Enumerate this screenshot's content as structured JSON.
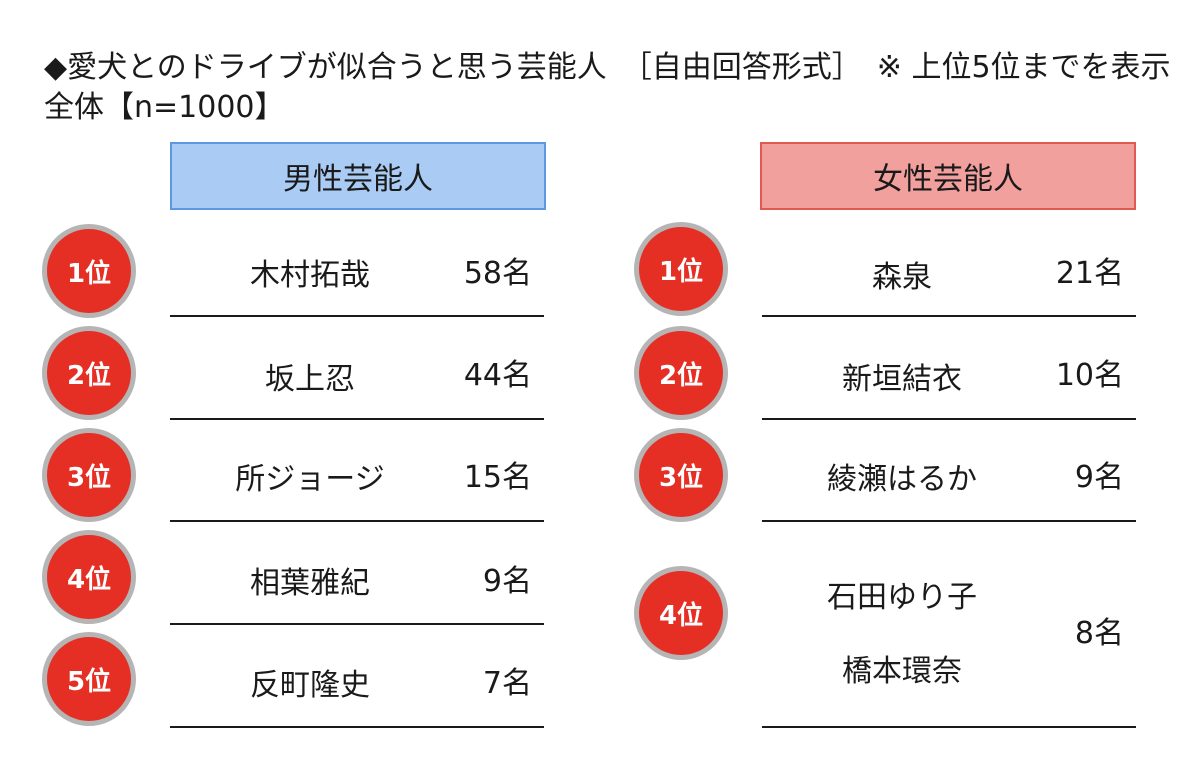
{
  "title": "◆愛犬とのドライブが似合うと思う芸能人　［自由回答形式］　※ 上位5位までを表示",
  "subtitle": "全体【n=1000】",
  "chart_data": {
    "type": "table",
    "tables": [
      {
        "header": "男性芸能人",
        "rows": [
          {
            "rank": "1位",
            "name": "木村拓哉",
            "count": "58名"
          },
          {
            "rank": "2位",
            "name": "坂上忍",
            "count": "44名"
          },
          {
            "rank": "3位",
            "name": "所ジョージ",
            "count": "15名"
          },
          {
            "rank": "4位",
            "name": "相葉雅紀",
            "count": "9名"
          },
          {
            "rank": "5位",
            "name": "反町隆史",
            "count": "7名"
          }
        ]
      },
      {
        "header": "女性芸能人",
        "rows": [
          {
            "rank": "1位",
            "name": "森泉",
            "count": "21名"
          },
          {
            "rank": "2位",
            "name": "新垣結衣",
            "count": "10名"
          },
          {
            "rank": "3位",
            "name": "綾瀬はるか",
            "count": "9名"
          },
          {
            "rank": "4位",
            "name": "石田ゆり子",
            "name2": "橋本環奈",
            "count": "8名"
          }
        ]
      }
    ]
  },
  "colors": {
    "male_header_bg": "#a9cbf4",
    "female_header_bg": "#f1a09e",
    "badge": "#e52f24"
  }
}
